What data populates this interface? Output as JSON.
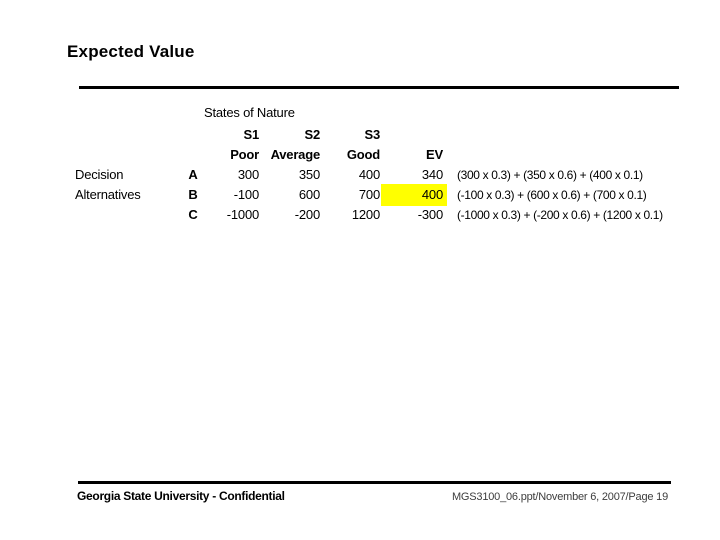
{
  "slide": {
    "title": "Expected Value"
  },
  "table": {
    "group_header": "States of Nature",
    "col_codes": [
      "S1",
      "S2",
      "S3"
    ],
    "col_names": [
      "Poor",
      "Average",
      "Good"
    ],
    "ev_header": "EV",
    "rows": [
      {
        "label": "Decision",
        "alt": "A",
        "s1": "300",
        "s2": "350",
        "s3": "400",
        "ev": "340",
        "formula": "(300 x 0.3) + (350 x 0.6) + (400 x 0.1)",
        "highlighted": false
      },
      {
        "label": "Alternatives",
        "alt": "B",
        "s1": "-100",
        "s2": "600",
        "s3": "700",
        "ev": "400",
        "formula": "(-100 x 0.3) + (600 x 0.6) + (700 x 0.1)",
        "highlighted": true
      },
      {
        "label": "",
        "alt": "C",
        "s1": "-1000",
        "s2": "-200",
        "s3": "1200",
        "ev": "-300",
        "formula": "(-1000 x 0.3) + (-200 x 0.6) + (1200 x 0.1)",
        "highlighted": false
      }
    ]
  },
  "footer": {
    "left": "Georgia State University - Confidential",
    "right": "MGS3100_06.ppt/November 6, 2007/Page 19"
  },
  "colors": {
    "highlight": "#FFFF00",
    "text": "#000000",
    "footer_right_text": "#3D3D3D"
  }
}
